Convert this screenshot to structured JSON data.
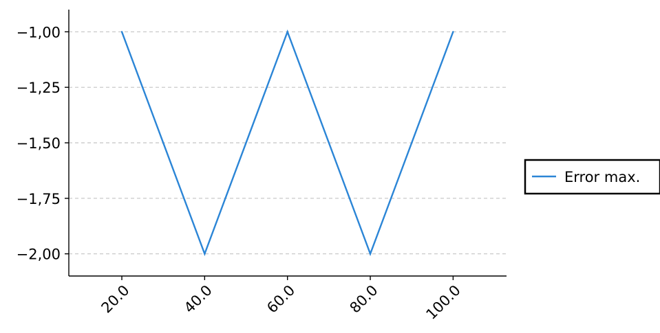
{
  "chart_data": {
    "type": "line",
    "title": "",
    "xlabel": "",
    "ylabel": "",
    "x": [
      20.0,
      40.0,
      60.0,
      80.0,
      100.0
    ],
    "x_tick_labels": [
      "20.0",
      "40.0",
      "60.0",
      "80.0",
      "100.0"
    ],
    "xlim": [
      7.2,
      112.9
    ],
    "ylim": [
      -2.1,
      -0.9
    ],
    "y_ticks": [
      -1.0,
      -1.25,
      -1.5,
      -1.75,
      -2.0
    ],
    "y_tick_labels": [
      "−1,00",
      "−1,25",
      "−1,50",
      "−1,75",
      "−2,00"
    ],
    "grid": {
      "y": true,
      "x": false,
      "style": "dashed"
    },
    "legend": {
      "placement": "outside-right"
    },
    "series": [
      {
        "name": "Error max.",
        "color": "#2b85d6",
        "values": [
          -1.0,
          -2.0,
          -1.0,
          -2.0,
          -1.0
        ]
      }
    ]
  }
}
